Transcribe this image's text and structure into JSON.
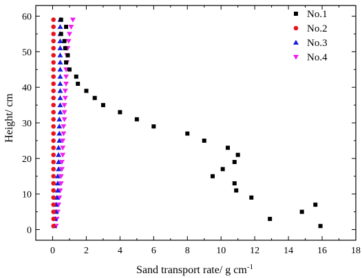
{
  "chart_data": {
    "type": "scatter",
    "title": "",
    "xlabel": "Sand transport rate/ g cm",
    "xlabel_sup": "-1",
    "ylabel": "Height/ cm",
    "xlim": [
      -1,
      18
    ],
    "ylim": [
      -3,
      63
    ],
    "xticks": [
      0,
      2,
      4,
      6,
      8,
      10,
      12,
      14,
      16,
      18
    ],
    "yticks": [
      0,
      10,
      20,
      30,
      40,
      50,
      60
    ],
    "grid": false,
    "legend_position": "top-right",
    "series": [
      {
        "name": "No.1",
        "marker": "square",
        "color": "#000000",
        "points": [
          [
            15.9,
            1
          ],
          [
            12.9,
            3
          ],
          [
            14.8,
            5
          ],
          [
            15.6,
            7
          ],
          [
            11.8,
            9
          ],
          [
            10.9,
            11
          ],
          [
            10.8,
            13
          ],
          [
            9.5,
            15
          ],
          [
            10.1,
            17
          ],
          [
            10.8,
            19
          ],
          [
            11.0,
            21
          ],
          [
            10.4,
            23
          ],
          [
            9.0,
            25
          ],
          [
            8.0,
            27
          ],
          [
            6.0,
            29
          ],
          [
            5.0,
            31
          ],
          [
            4.0,
            33
          ],
          [
            3.0,
            35
          ],
          [
            2.5,
            37
          ],
          [
            2.0,
            39
          ],
          [
            1.5,
            41
          ],
          [
            1.4,
            43
          ],
          [
            1.0,
            45
          ],
          [
            0.8,
            47
          ],
          [
            0.9,
            49
          ],
          [
            0.75,
            51
          ],
          [
            0.7,
            53
          ],
          [
            0.5,
            55
          ],
          [
            0.8,
            57
          ],
          [
            0.5,
            59
          ]
        ]
      },
      {
        "name": "No.2",
        "marker": "circle",
        "color": "#e8131c",
        "points": [
          [
            0.05,
            1
          ],
          [
            0.05,
            3
          ],
          [
            0.05,
            5
          ],
          [
            0.05,
            7
          ],
          [
            0.05,
            9
          ],
          [
            0.05,
            11
          ],
          [
            0.05,
            13
          ],
          [
            0.05,
            15
          ],
          [
            0.05,
            17
          ],
          [
            0.05,
            19
          ],
          [
            0.05,
            21
          ],
          [
            0.05,
            23
          ],
          [
            0.05,
            25
          ],
          [
            0.05,
            27
          ],
          [
            0.05,
            29
          ],
          [
            0.05,
            31
          ],
          [
            0.05,
            33
          ],
          [
            0.05,
            35
          ],
          [
            0.05,
            37
          ],
          [
            0.05,
            39
          ],
          [
            0.05,
            41
          ],
          [
            0.05,
            43
          ],
          [
            0.05,
            45
          ],
          [
            0.05,
            47
          ],
          [
            0.05,
            49
          ],
          [
            0.05,
            51
          ],
          [
            0.05,
            53
          ],
          [
            0.05,
            55
          ],
          [
            0.05,
            57
          ],
          [
            0.05,
            59
          ]
        ]
      },
      {
        "name": "No.3",
        "marker": "triangle-up",
        "color": "#1a1adc",
        "points": [
          [
            0.1,
            1
          ],
          [
            0.15,
            3
          ],
          [
            0.2,
            5
          ],
          [
            0.2,
            7
          ],
          [
            0.25,
            9
          ],
          [
            0.3,
            11
          ],
          [
            0.3,
            13
          ],
          [
            0.3,
            15
          ],
          [
            0.35,
            17
          ],
          [
            0.35,
            19
          ],
          [
            0.35,
            21
          ],
          [
            0.35,
            23
          ],
          [
            0.4,
            25
          ],
          [
            0.4,
            27
          ],
          [
            0.4,
            29
          ],
          [
            0.4,
            31
          ],
          [
            0.45,
            33
          ],
          [
            0.45,
            35
          ],
          [
            0.45,
            37
          ],
          [
            0.45,
            39
          ],
          [
            0.45,
            41
          ],
          [
            0.45,
            43
          ],
          [
            0.45,
            45
          ],
          [
            0.45,
            47
          ],
          [
            0.45,
            49
          ],
          [
            0.45,
            51
          ],
          [
            0.45,
            53
          ],
          [
            0.45,
            55
          ],
          [
            0.45,
            57
          ],
          [
            0.45,
            59
          ]
        ]
      },
      {
        "name": "No.4",
        "marker": "triangle-down",
        "color": "#f01cf0",
        "points": [
          [
            0.2,
            1
          ],
          [
            0.25,
            3
          ],
          [
            0.3,
            5
          ],
          [
            0.35,
            7
          ],
          [
            0.4,
            9
          ],
          [
            0.45,
            11
          ],
          [
            0.5,
            13
          ],
          [
            0.5,
            15
          ],
          [
            0.55,
            17
          ],
          [
            0.55,
            19
          ],
          [
            0.6,
            21
          ],
          [
            0.6,
            23
          ],
          [
            0.6,
            25
          ],
          [
            0.65,
            27
          ],
          [
            0.65,
            29
          ],
          [
            0.7,
            31
          ],
          [
            0.7,
            33
          ],
          [
            0.7,
            35
          ],
          [
            0.75,
            37
          ],
          [
            0.75,
            39
          ],
          [
            0.8,
            41
          ],
          [
            0.8,
            43
          ],
          [
            0.8,
            45
          ],
          [
            0.85,
            47
          ],
          [
            0.85,
            49
          ],
          [
            0.9,
            51
          ],
          [
            0.95,
            53
          ],
          [
            1.0,
            55
          ],
          [
            1.1,
            57
          ],
          [
            1.2,
            59
          ]
        ]
      }
    ]
  }
}
